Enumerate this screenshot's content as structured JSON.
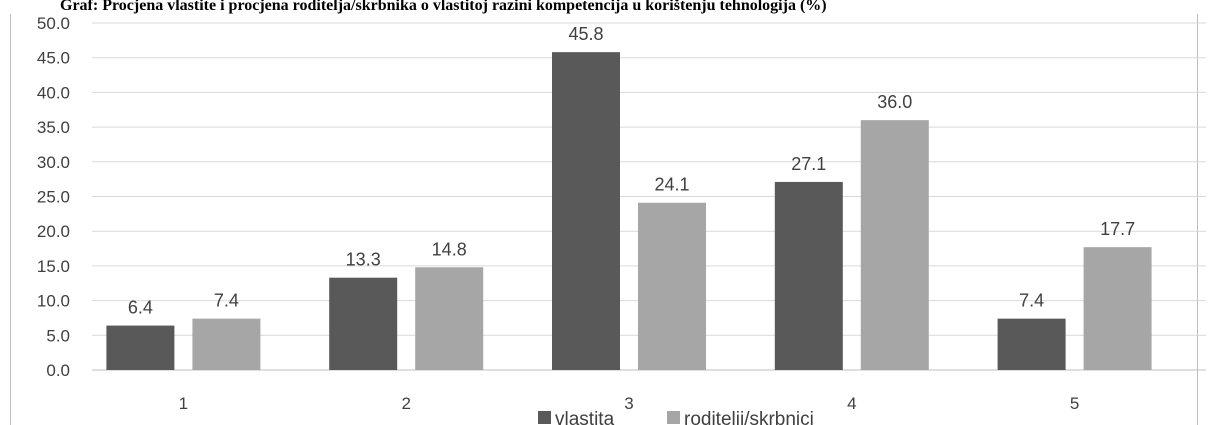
{
  "title_fragment": "Graf: Procjena vlastite i procjena roditelja/skrbnika o vlastitoj razini kompetencija u korištenju tehnologija (%)",
  "chart_data": {
    "type": "bar",
    "categories": [
      "1",
      "2",
      "3",
      "4",
      "5"
    ],
    "series": [
      {
        "name": "vlastita",
        "values": [
          6.4,
          13.3,
          45.8,
          27.1,
          7.4
        ],
        "color": "#595959"
      },
      {
        "name": "roditelji/skrbnici",
        "values": [
          7.4,
          14.8,
          24.1,
          36.0,
          17.7
        ],
        "color": "#a6a6a6"
      }
    ],
    "ylim": [
      0,
      50
    ],
    "yticks": [
      "0.0",
      "5.0",
      "10.0",
      "15.0",
      "20.0",
      "25.0",
      "30.0",
      "35.0",
      "40.0",
      "45.0",
      "50.0"
    ],
    "grid": true,
    "legend_position": "bottom",
    "data_labels": true
  }
}
